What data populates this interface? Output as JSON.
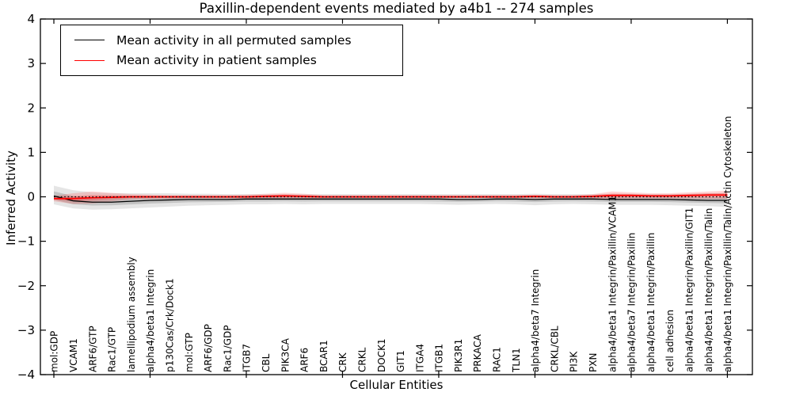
{
  "chart_data": {
    "type": "line",
    "title": "Paxillin-dependent events mediated by a4b1 -- 274 samples",
    "xlabel": "Cellular Entities",
    "ylabel": "Inferred Activity",
    "ylim": [
      -4,
      4
    ],
    "ytick_values": [
      4,
      3,
      2,
      1,
      0,
      -1,
      -2,
      -3,
      -4
    ],
    "ytick_labels": [
      "4",
      "3",
      "2",
      "1",
      "0",
      "−1",
      "−2",
      "−3",
      "−4"
    ],
    "x_major_tick_indices": [
      0,
      5,
      10,
      15,
      20,
      25,
      30,
      35
    ],
    "grid": false,
    "legend": {
      "position": "upper left",
      "entries": [
        {
          "label": "Mean activity in all permuted samples",
          "color": "#000000"
        },
        {
          "label": "Mean activity in patient samples",
          "color": "#ff0000"
        }
      ]
    },
    "categories": [
      "mol:GDP",
      "VCAM1",
      "ARF6/GTP",
      "Rac1/GTP",
      "lamellipodium assembly",
      "alpha4/beta1 Integrin",
      "p130Cas/Crk/Dock1",
      "mol:GTP",
      "ARF6/GDP",
      "Rac1/GDP",
      "ITGB7",
      "CBL",
      "PIK3CA",
      "ARF6",
      "BCAR1",
      "CRK",
      "CRKL",
      "DOCK1",
      "GIT1",
      "ITGA4",
      "ITGB1",
      "PIK3R1",
      "PRKACA",
      "RAC1",
      "TLN1",
      "alpha4/beta7 Integrin",
      "CRKL/CBL",
      "PI3K",
      "PXN",
      "alpha4/beta1 Integrin/Paxillin/VCAM1",
      "alpha4/beta7 Integrin/Paxillin",
      "alpha4/beta1 Integrin/Paxillin",
      "cell adhesion",
      "alpha4/beta1 Integrin/Paxillin/GIT1",
      "alpha4/beta1 Integrin/Paxillin/Talin",
      "alpha4/beta1 Integrin/Paxillin/Talin/Actin Cytoskeleton"
    ],
    "series": [
      {
        "name": "Mean activity in all permuted samples",
        "color": "#000000",
        "line_width": 1.3,
        "band_color": "#000000",
        "band_opacity": 0.1,
        "values": [
          0.02,
          -0.09,
          -0.12,
          -0.12,
          -0.1,
          -0.08,
          -0.07,
          -0.06,
          -0.06,
          -0.06,
          -0.05,
          -0.05,
          -0.05,
          -0.05,
          -0.05,
          -0.05,
          -0.05,
          -0.05,
          -0.05,
          -0.05,
          -0.05,
          -0.06,
          -0.06,
          -0.05,
          -0.05,
          -0.06,
          -0.05,
          -0.05,
          -0.05,
          -0.06,
          -0.06,
          -0.06,
          -0.06,
          -0.07,
          -0.08,
          -0.08
        ],
        "band_upper": [
          0.25,
          0.15,
          0.1,
          0.08,
          0.08,
          0.08,
          0.08,
          0.07,
          0.07,
          0.06,
          0.06,
          0.06,
          0.06,
          0.06,
          0.06,
          0.06,
          0.06,
          0.06,
          0.06,
          0.06,
          0.06,
          0.06,
          0.06,
          0.06,
          0.06,
          0.07,
          0.06,
          0.06,
          0.06,
          0.07,
          0.07,
          0.06,
          0.06,
          0.07,
          0.08,
          0.09
        ],
        "band_lower": [
          -0.17,
          -0.26,
          -0.29,
          -0.28,
          -0.26,
          -0.24,
          -0.22,
          -0.2,
          -0.19,
          -0.18,
          -0.17,
          -0.17,
          -0.16,
          -0.17,
          -0.16,
          -0.16,
          -0.16,
          -0.16,
          -0.16,
          -0.16,
          -0.17,
          -0.18,
          -0.17,
          -0.16,
          -0.17,
          -0.19,
          -0.17,
          -0.16,
          -0.17,
          -0.18,
          -0.18,
          -0.18,
          -0.19,
          -0.2,
          -0.21,
          -0.23
        ]
      },
      {
        "name": "Mean activity in patient samples",
        "color": "#ff0000",
        "line_width": 1.8,
        "band_color": "#ff0000",
        "band_opacity": 0.16,
        "values": [
          -0.04,
          -0.04,
          -0.02,
          -0.01,
          0,
          0,
          0,
          0,
          0,
          0,
          0,
          0.01,
          0.02,
          0.01,
          0,
          0,
          0,
          0,
          0,
          0,
          0,
          0,
          0,
          0,
          0,
          0.01,
          0,
          0,
          0.01,
          0.03,
          0.03,
          0.02,
          0.02,
          0.03,
          0.04,
          0.04
        ],
        "band_upper": [
          0.02,
          0.08,
          0.12,
          0.09,
          0.06,
          0.05,
          0.04,
          0.04,
          0.04,
          0.04,
          0.05,
          0.07,
          0.09,
          0.07,
          0.04,
          0.04,
          0.04,
          0.04,
          0.04,
          0.04,
          0.04,
          0.04,
          0.04,
          0.04,
          0.04,
          0.05,
          0.04,
          0.04,
          0.06,
          0.12,
          0.1,
          0.08,
          0.08,
          0.1,
          0.12,
          0.14
        ],
        "band_lower": [
          -0.1,
          -0.16,
          -0.15,
          -0.1,
          -0.06,
          -0.05,
          -0.04,
          -0.04,
          -0.04,
          -0.04,
          -0.04,
          -0.04,
          -0.04,
          -0.04,
          -0.03,
          -0.03,
          -0.03,
          -0.03,
          -0.03,
          -0.03,
          -0.03,
          -0.03,
          -0.03,
          -0.03,
          -0.03,
          -0.04,
          -0.03,
          -0.03,
          -0.04,
          -0.05,
          -0.04,
          -0.04,
          -0.04,
          -0.04,
          -0.05,
          -0.05
        ]
      }
    ],
    "inner_band_scale": 0.45,
    "zero_line": {
      "y": 0,
      "style": "dotted",
      "color": "#000000"
    }
  }
}
